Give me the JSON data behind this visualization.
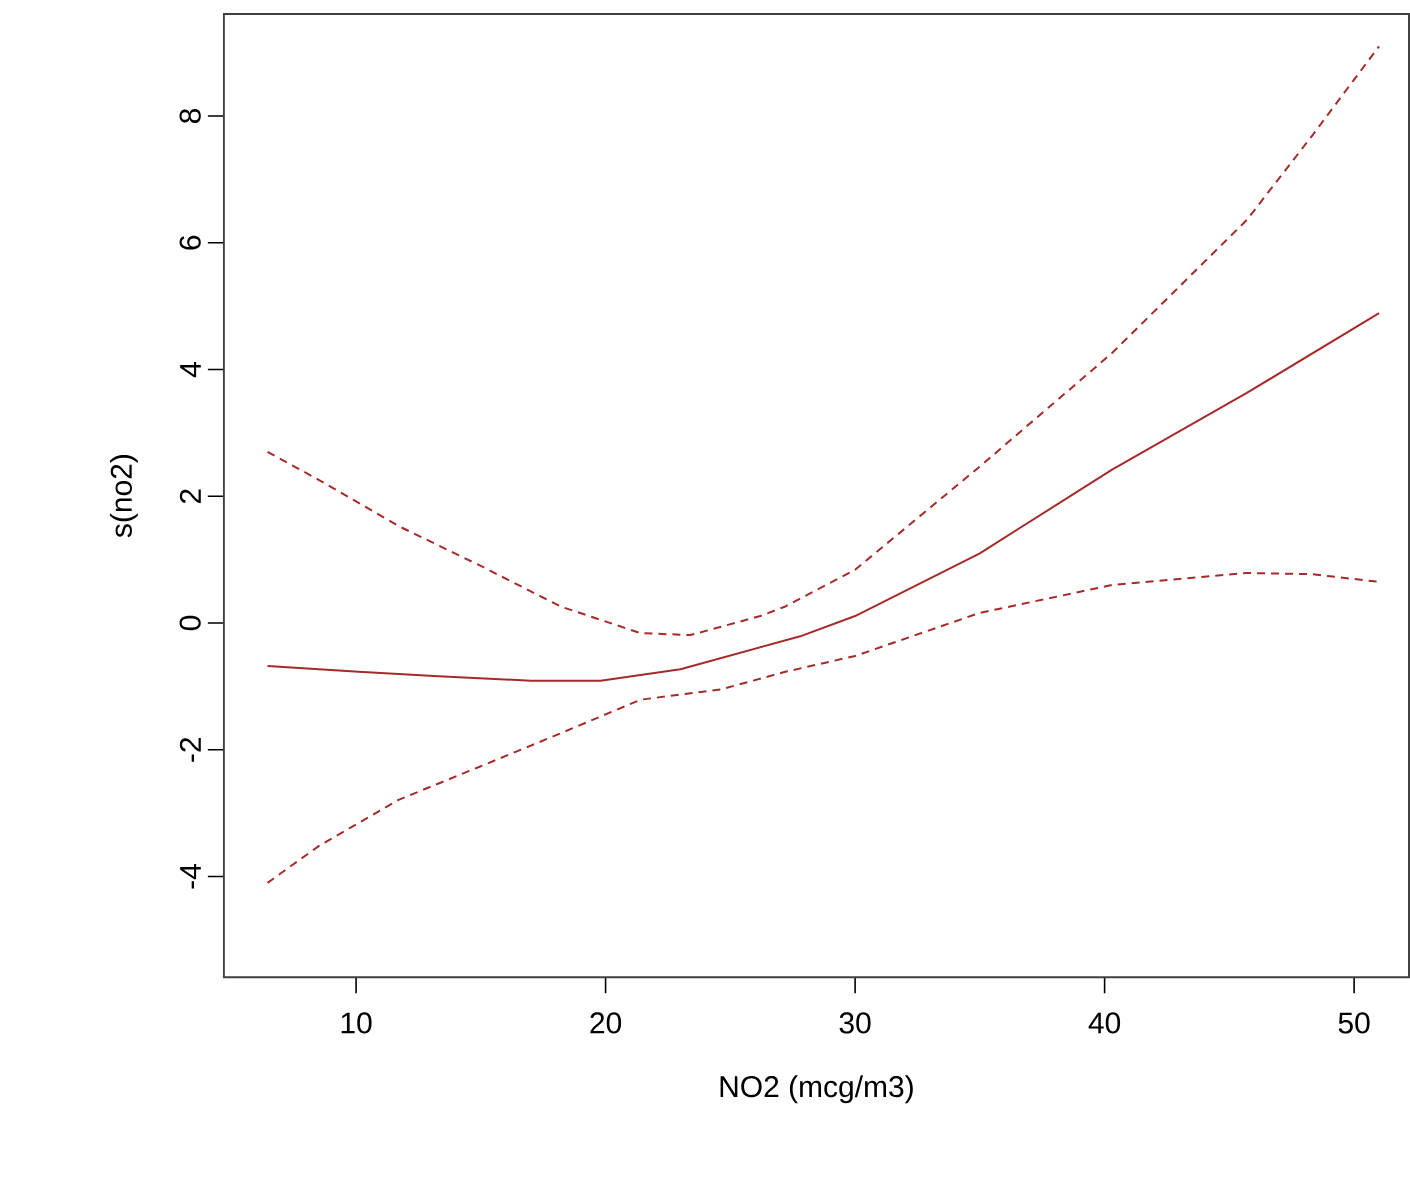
{
  "chart_data": {
    "type": "line",
    "xlabel": "NO2 (mcg/m3)",
    "ylabel": "s(no2)",
    "xlim": [
      4.7,
      52.2
    ],
    "ylim": [
      -5.59,
      9.61
    ],
    "xticks": [
      10,
      20,
      30,
      40,
      50
    ],
    "yticks": [
      -4,
      -2,
      0,
      2,
      4,
      6,
      8
    ],
    "series": [
      {
        "color": "#a52a2a",
        "line_style": "solid",
        "x": [
          6.45,
          10.1,
          13.3,
          17,
          19.8,
          23,
          27.8,
          30.0,
          35.0,
          40.3,
          45.7,
          51.0
        ],
        "values": [
          -0.68,
          -0.77,
          -0.84,
          -0.91,
          -0.91,
          -0.73,
          -0.21,
          0.11,
          1.1,
          2.42,
          3.63,
          4.89
        ]
      },
      {
        "color": "#a52a2a",
        "line_style": "dashed",
        "x": [
          6.45,
          8.5,
          11.7,
          15,
          18.2,
          21.4,
          23.4,
          26.2,
          27.2,
          30.0,
          35.0,
          40.3,
          45.7,
          48.3,
          51.0
        ],
        "values": [
          2.7,
          2.26,
          1.53,
          0.9,
          0.26,
          -0.16,
          -0.19,
          0.11,
          0.26,
          0.84,
          2.47,
          4.26,
          6.36,
          7.68,
          9.1
        ]
      },
      {
        "color": "#a52a2a",
        "line_style": "dashed",
        "x": [
          6.45,
          8.5,
          11.7,
          15,
          18.2,
          21.4,
          24.6,
          27.2,
          30.0,
          35.0,
          40.3,
          45.7,
          48.3,
          51.0
        ],
        "values": [
          -4.1,
          -3.52,
          -2.79,
          -2.26,
          -1.74,
          -1.21,
          -1.05,
          -0.77,
          -0.52,
          0.16,
          0.6,
          0.79,
          0.77,
          0.65
        ]
      }
    ]
  }
}
